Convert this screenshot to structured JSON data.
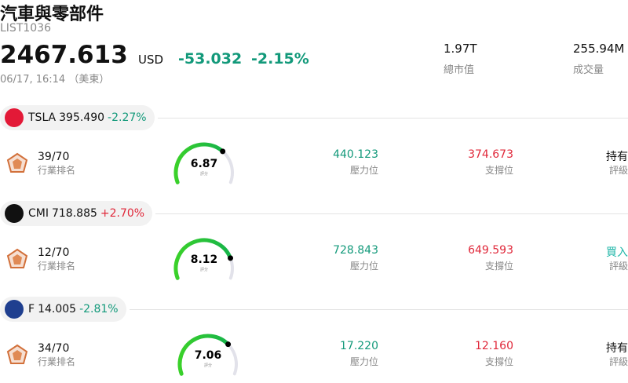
{
  "header": {
    "title": "汽車與零部件",
    "code": "LIST1036",
    "price": "2467.613",
    "currency": "USD",
    "change": "-53.032",
    "change_pct": "-2.15%",
    "time": "06/17, 16:14 （美東）",
    "stats": [
      {
        "value": "1.97T",
        "label": "總市值"
      },
      {
        "value": "255.94M",
        "label": "成交量"
      }
    ]
  },
  "score_range": [
    0,
    10
  ],
  "stocks": [
    {
      "ticker": "TSLA",
      "price": "395.490",
      "change": "-2.27%",
      "rank": "39/70",
      "rank_label": "行業排名",
      "score": 6.87,
      "score_label": "評分",
      "resistance": "440.123",
      "resistance_label": "壓力位",
      "support": "374.673",
      "support_label": "支撐位",
      "rating": "持有",
      "rating_label": "評級"
    },
    {
      "ticker": "CMI",
      "price": "718.885",
      "change": "+2.70%",
      "rank": "12/70",
      "rank_label": "行業排名",
      "score": 8.12,
      "score_label": "評分",
      "resistance": "728.843",
      "resistance_label": "壓力位",
      "support": "649.593",
      "support_label": "支撐位",
      "rating": "買入",
      "rating_label": "評級"
    },
    {
      "ticker": "F",
      "price": "14.005",
      "change": "-2.81%",
      "rank": "34/70",
      "rank_label": "行業排名",
      "score": 7.06,
      "score_label": "評分",
      "resistance": "17.220",
      "resistance_label": "壓力位",
      "support": "12.160",
      "support_label": "支撐位",
      "rating": "持有",
      "rating_label": "評級"
    }
  ]
}
